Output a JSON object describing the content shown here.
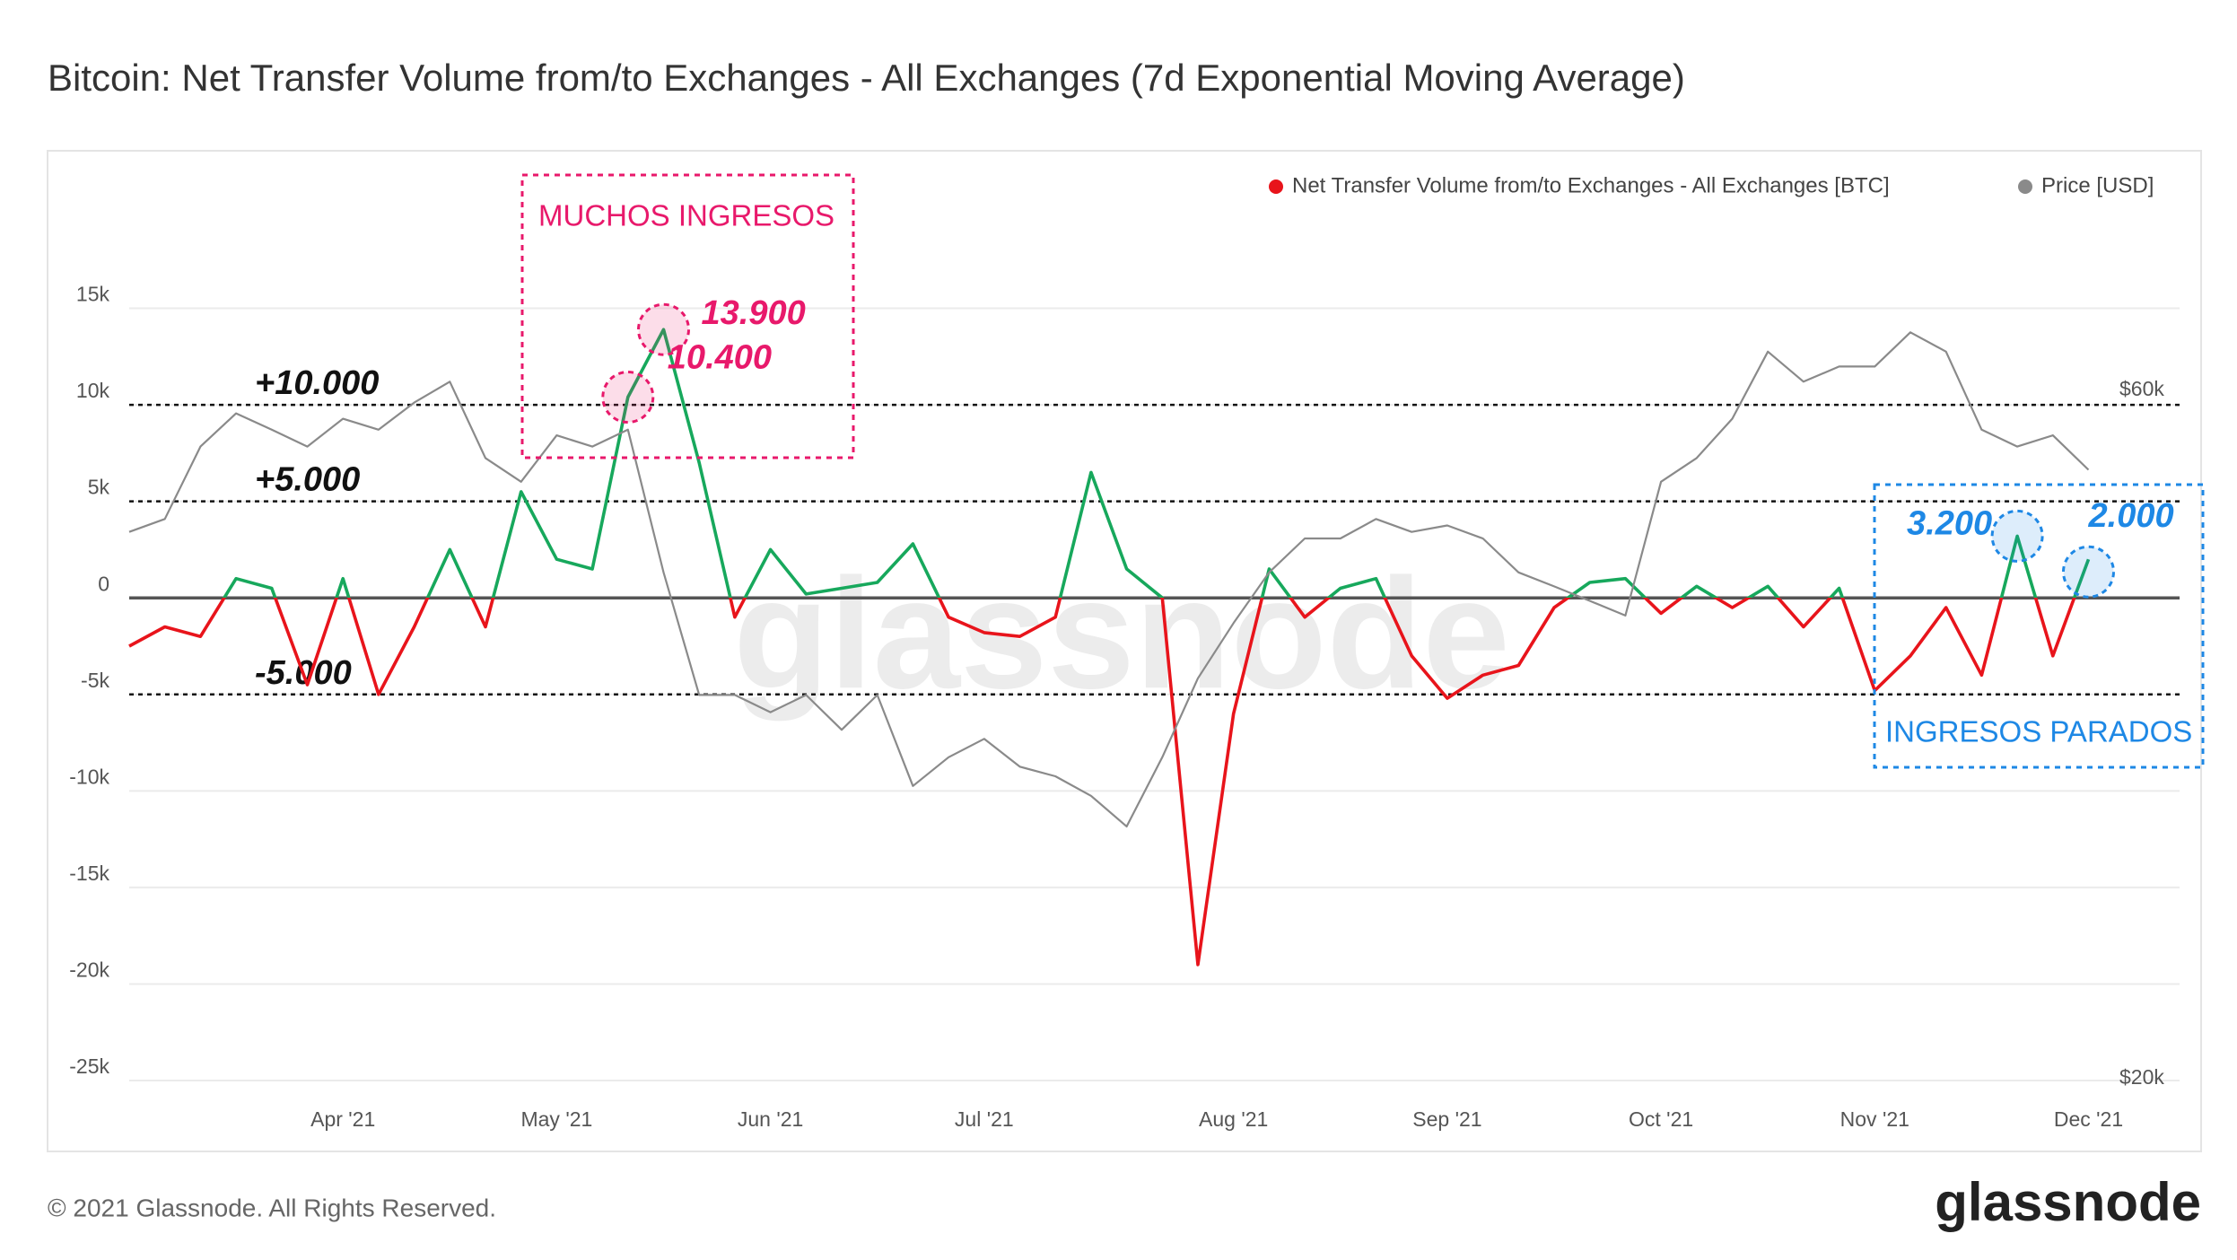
{
  "chart_data": {
    "type": "line",
    "title": "Bitcoin: Net Transfer Volume from/to Exchanges - All Exchanges (7d Exponential Moving Average)",
    "watermark": "glassnode",
    "legend": "top-right",
    "grid": true,
    "categories": [
      null,
      null,
      null,
      null,
      null,
      null,
      "Apr '21",
      null,
      null,
      null,
      null,
      null,
      "May '21",
      null,
      null,
      null,
      null,
      null,
      "Jun '21",
      null,
      null,
      null,
      null,
      null,
      "Jul '21",
      null,
      null,
      null,
      null,
      null,
      null,
      "Aug '21",
      null,
      null,
      null,
      null,
      null,
      "Sep '21",
      null,
      null,
      null,
      null,
      null,
      "Oct '21",
      null,
      null,
      null,
      null,
      null,
      "Nov '21",
      null,
      null,
      null,
      null,
      null,
      "Dec '21"
    ],
    "series": [
      {
        "name": "Net Transfer Volume from/to Exchanges - All Exchanges [BTC]",
        "color": "#e8141b",
        "positive_color": "#17a85c",
        "values": [
          -2500,
          -1500,
          -2000,
          1000,
          500,
          -4500,
          1000,
          -5000,
          -1500,
          2500,
          -1500,
          5500,
          2000,
          1500,
          10400,
          13900,
          7000,
          -1000,
          2500,
          200,
          500,
          800,
          2800,
          -1000,
          -1800,
          -2000,
          -1000,
          6500,
          1500,
          0,
          -19000,
          -6000,
          1500,
          -1000,
          500,
          1000,
          -3000,
          -5200,
          -4000,
          -3500,
          -500,
          800,
          1000,
          -800,
          600,
          -500,
          600,
          -1500,
          500,
          -4800,
          -3000,
          -500,
          -4000,
          3200,
          -3000,
          2000
        ],
        "value_labels": [
          null,
          null,
          null,
          null,
          null,
          null,
          null,
          null,
          null,
          null,
          null,
          null,
          null,
          null,
          "10.400",
          "13.900",
          null,
          null,
          null,
          null,
          null,
          null,
          null,
          null,
          null,
          null,
          null,
          null,
          null,
          null,
          null,
          null,
          null,
          null,
          null,
          null,
          null,
          null,
          null,
          null,
          null,
          null,
          null,
          null,
          null,
          null,
          null,
          null,
          null,
          null,
          null,
          null,
          null,
          "3.200",
          null,
          "2.000"
        ]
      },
      {
        "name": "Price [USD]",
        "color": "#8a8a8a",
        "axis": "y2",
        "values": [
          48000,
          49000,
          55000,
          58000,
          56500,
          55000,
          57500,
          56500,
          59000,
          61000,
          54000,
          52000,
          56000,
          55000,
          56500,
          45000,
          37000,
          37000,
          36000,
          37000,
          35000,
          37000,
          32000,
          33500,
          34500,
          33000,
          32500,
          31500,
          30000,
          33500,
          38000,
          41500,
          45000,
          47500,
          47500,
          49000,
          48000,
          48500,
          47500,
          45000,
          44000,
          43000,
          42000,
          52000,
          54000,
          57500,
          64000,
          61000,
          62500,
          62500,
          66000,
          64000,
          56500,
          55000,
          56000,
          53000
        ]
      }
    ],
    "ylim": [
      -25000,
      20000
    ],
    "yticks": [
      {
        "value": 15000,
        "label": "15k"
      },
      {
        "value": 10000,
        "label": "10k"
      },
      {
        "value": 5000,
        "label": "5k"
      },
      0,
      {
        "value": -5000,
        "label": "-5k"
      },
      {
        "value": -10000,
        "label": "-10k"
      },
      {
        "value": -15000,
        "label": "-15k"
      },
      {
        "value": -20000,
        "label": "-20k"
      },
      {
        "value": -25000,
        "label": "-25k"
      }
    ],
    "y2lim": [
      20000,
      80000
    ],
    "y2_log": true,
    "y2ticks": [
      {
        "value": 60000,
        "label": "$60k"
      },
      {
        "value": 20000,
        "label": "$20k"
      }
    ],
    "reference_lines": [
      {
        "value": 10000,
        "label": "+10.000"
      },
      {
        "value": 5000,
        "label": "+5.000"
      },
      {
        "value": -5000,
        "label": "-5.000"
      }
    ],
    "annotations": [
      {
        "label": "MUCHOS INGRESOS",
        "color": "#e8196b"
      },
      {
        "label": "INGRESOS PARADOS",
        "color": "#1e88e5"
      }
    ]
  },
  "footer": {
    "copyright": "© 2021 Glassnode. All Rights Reserved.",
    "logo": "glassnode"
  }
}
